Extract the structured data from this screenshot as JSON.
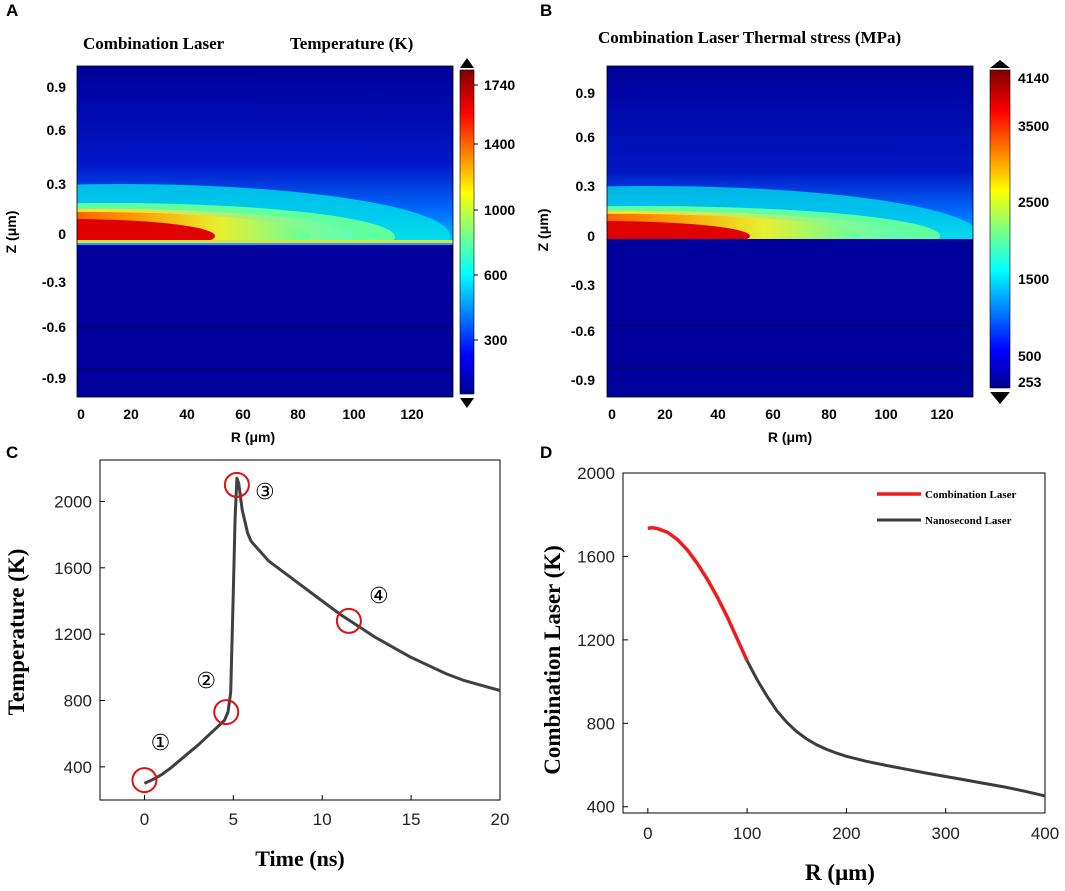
{
  "chart_data": [
    {
      "id": "A",
      "type": "heatmap",
      "panel_label": "A",
      "title_left": "Combination Laser",
      "title_right": "Temperature (K)",
      "xlabel": "R (μm)",
      "ylabel": "Z (μm)",
      "x_ticks": [
        "0",
        "20",
        "40",
        "60",
        "80",
        "100",
        "120"
      ],
      "y_ticks": [
        "0.9",
        "0.6",
        "0.3",
        "0",
        "-0.3",
        "-0.6",
        "-0.9"
      ],
      "xlim": [
        0,
        130
      ],
      "ylim": [
        -1.05,
        1.05
      ],
      "colorbar_ticks": [
        "1740",
        "1400",
        "1000",
        "600",
        "300"
      ],
      "colorbar_range": [
        253,
        1800
      ]
    },
    {
      "id": "B",
      "type": "heatmap",
      "panel_label": "B",
      "title": "Combination Laser Thermal stress (MPa)",
      "xlabel": "R (μm)",
      "ylabel": "Z (μm)",
      "x_ticks": [
        "0",
        "20",
        "40",
        "60",
        "80",
        "100",
        "120"
      ],
      "y_ticks": [
        "0.9",
        "0.6",
        "0.3",
        "0",
        "-0.3",
        "-0.6",
        "-0.9"
      ],
      "xlim": [
        0,
        130
      ],
      "ylim": [
        -1.05,
        1.05
      ],
      "colorbar_ticks": [
        "4140",
        "3500",
        "2500",
        "1500",
        "500",
        "253"
      ],
      "colorbar_range": [
        253,
        4140
      ]
    },
    {
      "id": "C",
      "type": "line",
      "panel_label": "C",
      "xlabel": "Time (ns)",
      "ylabel": "Temperature (K)",
      "xlim": [
        -2.5,
        20
      ],
      "ylim": [
        200,
        2250
      ],
      "x_ticks": [
        0,
        5,
        10,
        15,
        20
      ],
      "y_ticks": [
        400,
        800,
        1200,
        1600,
        2000
      ],
      "series": [
        {
          "name": "Temperature",
          "color": "#404040",
          "x": [
            0,
            0.5,
            1,
            1.5,
            2,
            2.5,
            3,
            3.5,
            4,
            4.5,
            4.7,
            4.85,
            5,
            5.1,
            5.2,
            5.3,
            5.5,
            5.8,
            6,
            6.5,
            7,
            8,
            9,
            10,
            11,
            12,
            13,
            14,
            15,
            16,
            17,
            18,
            19,
            20
          ],
          "y": [
            300,
            325,
            355,
            395,
            440,
            485,
            530,
            580,
            630,
            680,
            730,
            850,
            1450,
            1900,
            2140,
            2110,
            1950,
            1810,
            1760,
            1700,
            1640,
            1560,
            1480,
            1400,
            1320,
            1250,
            1180,
            1120,
            1060,
            1010,
            960,
            920,
            890,
            860
          ]
        }
      ],
      "markers": [
        {
          "label": "①",
          "x": 0,
          "y": 320
        },
        {
          "label": "②",
          "x": 4.6,
          "y": 730
        },
        {
          "label": "③",
          "x": 5.2,
          "y": 2100
        },
        {
          "label": "④",
          "x": 11.5,
          "y": 1280
        }
      ]
    },
    {
      "id": "D",
      "type": "line",
      "panel_label": "D",
      "xlabel": "R (μm)",
      "ylabel": "Combination Laser (K)",
      "xlim": [
        -25,
        400
      ],
      "ylim": [
        370,
        2000
      ],
      "x_ticks": [
        0,
        100,
        200,
        300,
        400
      ],
      "y_ticks": [
        400,
        800,
        1200,
        1600,
        2000
      ],
      "legend": [
        "Combination Laser",
        "Nanosecond Laser"
      ],
      "legend_position": "top-right",
      "series": [
        {
          "name": "Combination Laser",
          "color": "#ee1c1c",
          "x": [
            0,
            5,
            10,
            20,
            30,
            40,
            50,
            60,
            70,
            80,
            90,
            100
          ],
          "y": [
            1735,
            1738,
            1733,
            1715,
            1680,
            1630,
            1565,
            1490,
            1405,
            1310,
            1205,
            1100
          ]
        },
        {
          "name": "Nanosecond Laser",
          "color": "#3c3c3c",
          "x": [
            100,
            110,
            120,
            130,
            140,
            150,
            160,
            170,
            180,
            190,
            200,
            220,
            240,
            260,
            280,
            300,
            320,
            340,
            360,
            380,
            400
          ],
          "y": [
            1100,
            1010,
            930,
            860,
            805,
            760,
            725,
            697,
            675,
            657,
            642,
            618,
            598,
            580,
            562,
            545,
            528,
            511,
            494,
            474,
            452
          ]
        }
      ]
    }
  ]
}
